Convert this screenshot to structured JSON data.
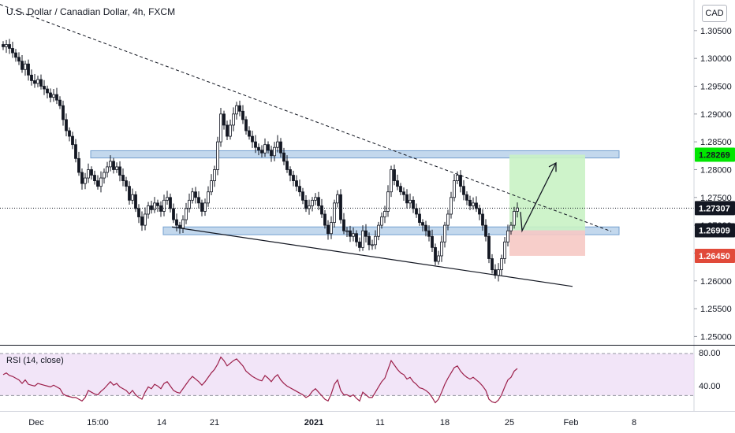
{
  "header": {
    "title": "U.S. Dollar / Canadian Dollar, 4h, FXCM",
    "currency": "CAD"
  },
  "rsi": {
    "label": "RSI (14, close)",
    "upper": "80.00",
    "lower": "40.00"
  },
  "colors": {
    "up_candle": "#131722",
    "down_candle": "#131722",
    "zone_fill": "#b9d2ea",
    "zone_stroke": "#5b8fc7",
    "target_fill": "#c9f2c4",
    "stop_fill": "#f6c9c4",
    "green_tag": "#00e600",
    "red_tag": "#e14a3a",
    "rsi_line": "#9c1f4a",
    "rsi_band": "#eddcf5"
  },
  "chart_data": {
    "type": "candlestick",
    "title": "U.S. Dollar / Canadian Dollar, 4h, FXCM",
    "y_axis": {
      "ticks": [
        "1.30500",
        "1.30000",
        "1.29500",
        "1.29000",
        "1.28500",
        "1.28000",
        "1.27500",
        "1.27000",
        "1.26500",
        "1.26000",
        "1.25500",
        "1.25000"
      ],
      "range": [
        1.2485,
        1.3105
      ]
    },
    "x_axis": {
      "ticks": [
        "Dec",
        "15:00",
        "14",
        "21",
        "2021",
        "11",
        "18",
        "25",
        "Feb",
        "8"
      ]
    },
    "price_tags": [
      {
        "value": "1.28269",
        "style": "green"
      },
      {
        "value": "1.27307",
        "style": "dark"
      },
      {
        "value": "1.26909",
        "style": "dark"
      },
      {
        "value": "1.26450",
        "style": "red"
      }
    ],
    "zones": [
      {
        "name": "resistance zone",
        "low": 1.2821,
        "high": 1.2834
      },
      {
        "name": "support zone",
        "low": 1.2683,
        "high": 1.2697
      }
    ],
    "position": {
      "entry": 1.26909,
      "target": 1.28269,
      "stop": 1.2645
    },
    "trendlines": [
      {
        "style": "dashed",
        "from_price": 1.3097,
        "to_price": 1.2689
      },
      {
        "style": "solid",
        "from_price": 1.2697,
        "to_price": 1.259
      }
    ],
    "close_series": [
      1.3021,
      1.3025,
      1.3018,
      1.301,
      1.3002,
      1.2995,
      1.298,
      1.299,
      1.297,
      1.296,
      1.2955,
      1.2962,
      1.295,
      1.2945,
      1.2938,
      1.293,
      1.2935,
      1.2925,
      1.2915,
      1.289,
      1.287,
      1.286,
      1.2845,
      1.282,
      1.2795,
      1.2775,
      1.2785,
      1.28,
      1.279,
      1.278,
      1.277,
      1.2785,
      1.2795,
      1.2805,
      1.2815,
      1.28,
      1.2805,
      1.279,
      1.278,
      1.277,
      1.2745,
      1.2755,
      1.273,
      1.2715,
      1.27,
      1.272,
      1.2735,
      1.2728,
      1.274,
      1.2735,
      1.2725,
      1.2745,
      1.275,
      1.273,
      1.271,
      1.27,
      1.2695,
      1.271,
      1.273,
      1.2745,
      1.276,
      1.275,
      1.274,
      1.2725,
      1.274,
      1.276,
      1.278,
      1.28,
      1.285,
      1.29,
      1.288,
      1.286,
      1.288,
      1.29,
      1.2915,
      1.2905,
      1.289,
      1.287,
      1.286,
      1.285,
      1.284,
      1.2835,
      1.283,
      1.2845,
      1.2835,
      1.2825,
      1.284,
      1.285,
      1.283,
      1.2815,
      1.28,
      1.279,
      1.278,
      1.277,
      1.276,
      1.2745,
      1.273,
      1.2735,
      1.2745,
      1.275,
      1.2735,
      1.272,
      1.27,
      1.2685,
      1.2705,
      1.274,
      1.2755,
      1.271,
      1.269,
      1.269,
      1.268,
      1.2685,
      1.267,
      1.266,
      1.269,
      1.268,
      1.2665,
      1.2665,
      1.268,
      1.27,
      1.2715,
      1.2725,
      1.276,
      1.28,
      1.278,
      1.277,
      1.276,
      1.2755,
      1.274,
      1.2745,
      1.273,
      1.272,
      1.2705,
      1.27,
      1.269,
      1.268,
      1.266,
      1.2635,
      1.2645,
      1.267,
      1.27,
      1.272,
      1.275,
      1.278,
      1.279,
      1.277,
      1.2755,
      1.2745,
      1.2735,
      1.274,
      1.273,
      1.272,
      1.27,
      1.268,
      1.264,
      1.262,
      1.261,
      1.262,
      1.264,
      1.267,
      1.269,
      1.27,
      1.2725,
      1.2731
    ],
    "rsi_series": [
      56,
      58,
      55,
      54,
      52,
      50,
      46,
      50,
      45,
      44,
      43,
      46,
      45,
      44,
      43,
      42,
      44,
      42,
      40,
      34,
      32,
      31,
      30,
      30,
      28,
      26,
      30,
      38,
      36,
      34,
      33,
      37,
      40,
      44,
      48,
      44,
      46,
      42,
      40,
      38,
      34,
      38,
      33,
      30,
      28,
      36,
      42,
      40,
      45,
      43,
      40,
      46,
      48,
      43,
      38,
      36,
      35,
      40,
      45,
      50,
      54,
      51,
      48,
      44,
      48,
      53,
      58,
      62,
      68,
      76,
      72,
      66,
      69,
      72,
      74,
      70,
      66,
      60,
      57,
      54,
      52,
      50,
      49,
      55,
      52,
      48,
      53,
      56,
      50,
      46,
      43,
      41,
      39,
      37,
      35,
      33,
      30,
      32,
      37,
      40,
      36,
      32,
      28,
      26,
      34,
      45,
      50,
      38,
      33,
      33,
      31,
      33,
      29,
      26,
      36,
      33,
      30,
      30,
      36,
      42,
      48,
      52,
      62,
      72,
      67,
      62,
      58,
      56,
      51,
      53,
      48,
      45,
      41,
      40,
      38,
      35,
      30,
      24,
      28,
      36,
      45,
      52,
      58,
      64,
      66,
      60,
      56,
      53,
      51,
      53,
      50,
      47,
      43,
      38,
      28,
      25,
      24,
      27,
      33,
      42,
      50,
      53,
      60,
      63
    ]
  }
}
